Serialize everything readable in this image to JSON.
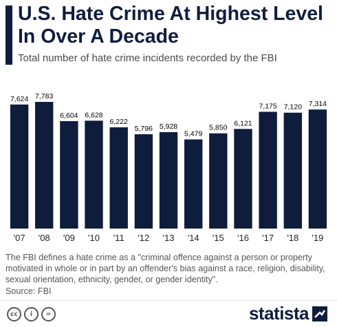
{
  "header": {
    "title": "U.S. Hate Crime At Highest Level In Over A Decade",
    "subtitle": "Total number of hate crime incidents recorded by the FBI"
  },
  "footnote": "The FBI defines a hate crime as a \"criminal offence against a person or property motivated in whole or in part by an offender's bias against a race, religion, disability, sexual orientation, ethnicity, gender, or gender identity\".",
  "source": "Source: FBI",
  "license_icons": [
    "creative-commons-icon",
    "attribution-icon",
    "no-derivatives-icon"
  ],
  "license_glyphs": [
    "cc",
    "i",
    "="
  ],
  "brand": {
    "name": "statista"
  },
  "colors": {
    "bar": "#0f1d3d",
    "text": "#000000",
    "axis": "#222222"
  },
  "chart_data": {
    "type": "bar",
    "title": "U.S. Hate Crime At Highest Level In Over A Decade",
    "subtitle": "Total number of hate crime incidents recorded by the FBI",
    "categories": [
      "'07",
      "'08",
      "'09",
      "'10",
      "'11",
      "'12",
      "'13",
      "'14",
      "'15",
      "'16",
      "'17",
      "'18",
      "'19"
    ],
    "values": [
      7624,
      7783,
      6604,
      6628,
      6222,
      5796,
      5928,
      5479,
      5850,
      6121,
      7175,
      7120,
      7314
    ],
    "value_labels": [
      "7,624",
      "7,783",
      "6,604",
      "6,628",
      "6,222",
      "5,796",
      "5,928",
      "5,479",
      "5,850",
      "6,121",
      "7,175",
      "7,120",
      "7,314"
    ],
    "xlabel": "",
    "ylabel": "",
    "ylim": [
      0,
      7783
    ],
    "grid": false,
    "legend": "none"
  }
}
